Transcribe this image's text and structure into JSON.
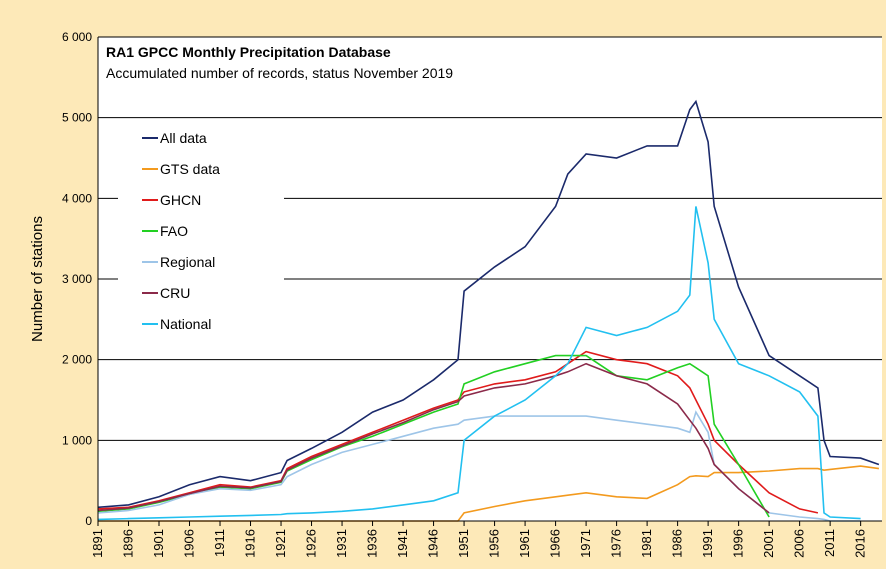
{
  "chart_data": {
    "type": "line",
    "title": "RA1 GPCC Monthly Precipitation Database",
    "subtitle": "Accumulated number of records, status November 2019",
    "y_label": "Number of stations",
    "x": [
      1891,
      1896,
      1901,
      1906,
      1911,
      1916,
      1921,
      1922,
      1926,
      1931,
      1936,
      1941,
      1946,
      1950,
      1951,
      1956,
      1961,
      1966,
      1968,
      1971,
      1976,
      1981,
      1986,
      1988,
      1989,
      1991,
      1992,
      1996,
      2001,
      2006,
      2009,
      2010,
      2011,
      2016,
      2019
    ],
    "series": [
      {
        "name": "All data",
        "color": "#1b2a6b",
        "values": [
          170,
          200,
          300,
          450,
          550,
          500,
          600,
          750,
          900,
          1100,
          1350,
          1500,
          1750,
          2000,
          2850,
          3150,
          3400,
          3900,
          4300,
          4550,
          4500,
          4650,
          4650,
          5100,
          5200,
          4700,
          3900,
          2900,
          2050,
          1800,
          1650,
          1000,
          800,
          780,
          700
        ]
      },
      {
        "name": "GTS data",
        "color": "#f39a1e",
        "values": [
          0,
          0,
          0,
          0,
          0,
          0,
          0,
          0,
          0,
          0,
          0,
          0,
          0,
          0,
          100,
          180,
          250,
          300,
          320,
          350,
          300,
          280,
          450,
          550,
          560,
          550,
          600,
          600,
          620,
          650,
          650,
          630,
          640,
          680,
          650
        ]
      },
      {
        "name": "GHCN",
        "color": "#e01b1b",
        "values": [
          150,
          170,
          250,
          350,
          450,
          420,
          500,
          650,
          800,
          950,
          1100,
          1250,
          1400,
          1500,
          1600,
          1700,
          1750,
          1850,
          1950,
          2100,
          2000,
          1950,
          1800,
          1650,
          1500,
          1200,
          1000,
          700,
          350,
          150,
          100,
          null,
          null,
          null,
          null
        ]
      },
      {
        "name": "FAO",
        "color": "#22d022",
        "values": [
          120,
          150,
          230,
          330,
          420,
          400,
          480,
          620,
          760,
          920,
          1050,
          1200,
          1350,
          1450,
          1700,
          1850,
          1950,
          2050,
          2050,
          2050,
          1800,
          1750,
          1900,
          1950,
          1900,
          1800,
          1200,
          700,
          50,
          null,
          null,
          null,
          null,
          null,
          null
        ]
      },
      {
        "name": "Regional",
        "color": "#9ec5e8",
        "values": [
          100,
          130,
          200,
          330,
          400,
          380,
          450,
          550,
          700,
          850,
          950,
          1050,
          1150,
          1200,
          1250,
          1300,
          1300,
          1300,
          1300,
          1300,
          1250,
          1200,
          1150,
          1100,
          1350,
          1100,
          700,
          400,
          100,
          50,
          30,
          20,
          0,
          0,
          null
        ]
      },
      {
        "name": "CRU",
        "color": "#8b2a4a",
        "values": [
          130,
          160,
          240,
          340,
          430,
          410,
          490,
          630,
          780,
          930,
          1080,
          1220,
          1380,
          1480,
          1550,
          1650,
          1700,
          1800,
          1850,
          1950,
          1800,
          1700,
          1450,
          1250,
          1150,
          900,
          700,
          400,
          100,
          null,
          null,
          null,
          null,
          null,
          null
        ]
      },
      {
        "name": "National",
        "color": "#22c0f0",
        "values": [
          20,
          30,
          40,
          50,
          60,
          70,
          80,
          90,
          100,
          120,
          150,
          200,
          250,
          350,
          1000,
          1300,
          1500,
          1800,
          1950,
          2400,
          2300,
          2400,
          2600,
          2800,
          3900,
          3200,
          2500,
          1950,
          1800,
          1600,
          1300,
          100,
          50,
          30,
          null
        ]
      }
    ],
    "xlim": [
      1891,
      2019.5
    ],
    "xticks": [
      1891,
      1896,
      1901,
      1906,
      1911,
      1916,
      1921,
      1926,
      1931,
      1936,
      1941,
      1946,
      1951,
      1956,
      1961,
      1966,
      1971,
      1976,
      1981,
      1986,
      1991,
      1996,
      2001,
      2006,
      2011,
      2016
    ],
    "ylim": [
      0,
      6000
    ],
    "yticks": [
      0,
      {
        "value": 1000,
        "label": "1 000"
      },
      {
        "value": 2000,
        "label": "2 000"
      },
      {
        "value": 3000,
        "label": "3 000"
      },
      {
        "value": 4000,
        "label": "4 000"
      },
      {
        "value": 5000,
        "label": "5 000"
      },
      {
        "value": 6000,
        "label": "6 000"
      }
    ],
    "grid": true
  }
}
